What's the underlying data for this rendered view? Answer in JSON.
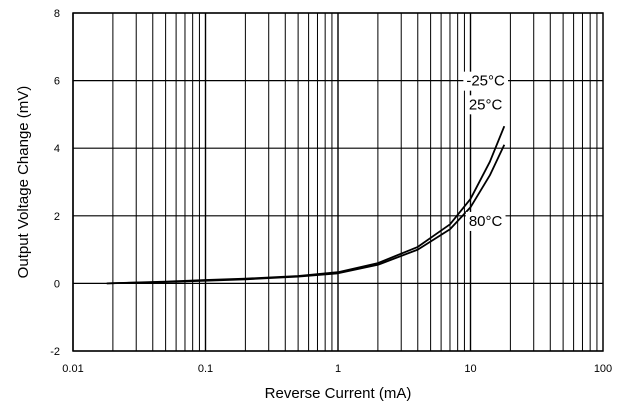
{
  "chart_data": {
    "type": "line",
    "title": "",
    "xlabel": "Reverse Current (mA)",
    "ylabel": "Output Voltage Change (mV)",
    "xscale": "log",
    "xlim": [
      0.01,
      100
    ],
    "ylim": [
      -2,
      8
    ],
    "grid": true,
    "x_ticks": [
      "0.01",
      "0.1",
      "1",
      "10",
      "100"
    ],
    "x_tick_values": [
      0.01,
      0.1,
      1,
      10,
      100
    ],
    "y_ticks": [
      "-2",
      "0",
      "2",
      "4",
      "6",
      "8"
    ],
    "y_tick_values": [
      -2,
      0,
      2,
      4,
      6,
      8
    ],
    "series": [
      {
        "name": "-25°C 25°C",
        "x": [
          0.018,
          0.05,
          0.1,
          0.2,
          0.5,
          1,
          2,
          4,
          7,
          10,
          14,
          18
        ],
        "y": [
          0.0,
          0.05,
          0.1,
          0.14,
          0.22,
          0.33,
          0.6,
          1.08,
          1.75,
          2.5,
          3.6,
          4.65
        ]
      },
      {
        "name": "80°C",
        "x": [
          0.018,
          0.05,
          0.1,
          0.2,
          0.5,
          1,
          2,
          4,
          7,
          10,
          14,
          18
        ],
        "y": [
          0.0,
          0.04,
          0.08,
          0.12,
          0.2,
          0.3,
          0.55,
          1.0,
          1.6,
          2.25,
          3.2,
          4.1
        ]
      }
    ],
    "annotations": [
      {
        "text": "-25°C",
        "x": 13.0,
        "y": 5.85
      },
      {
        "text": "25°C",
        "x": 13.0,
        "y": 5.15
      },
      {
        "text": "80°C",
        "x": 13.0,
        "y": 1.7
      }
    ]
  }
}
